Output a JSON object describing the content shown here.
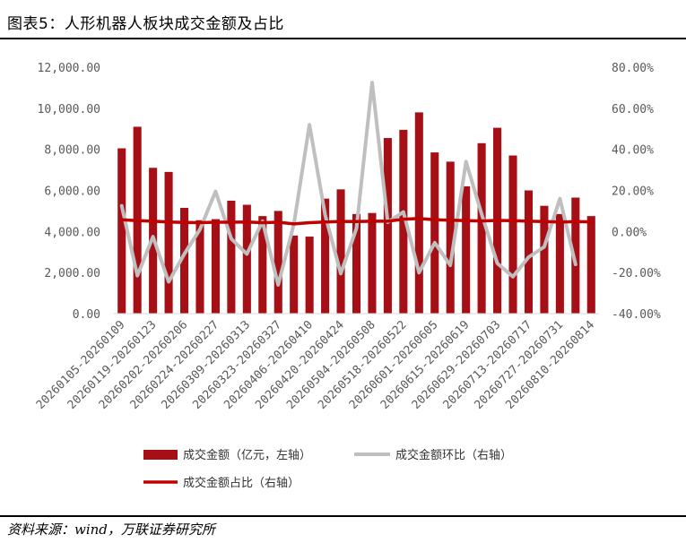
{
  "figure": {
    "title": "图表5：人形机器人板块成交金额及占比",
    "source": "资料来源：wind，万联证券研究所"
  },
  "colors": {
    "bar": "#A50F15",
    "ratio_line": "#C00000",
    "mom_line": "#BFBFBF"
  },
  "chart_data": {
    "type": "bar",
    "x_tick_labels": [
      "20260105-20260109",
      "20260119-20260123",
      "20260202-20260206",
      "20260224-20260227",
      "20260309-20260313",
      "20260323-20260327",
      "20260406-20260410",
      "20260420-20260424",
      "20260504-20260508",
      "20260518-20260522",
      "20260601-20260605",
      "20260615-20260619",
      "20260629-20260703",
      "20260713-20260717",
      "20260727-20260731",
      "20260810-20260814"
    ],
    "y_left": {
      "ticks": [
        "0.00",
        "2,000.00",
        "4,000.00",
        "6,000.00",
        "8,000.00",
        "10,000.00",
        "12,000.00"
      ],
      "ylim": [
        0,
        12000
      ]
    },
    "y_right": {
      "ticks": [
        "-40.00%",
        "-20.00%",
        "0.00%",
        "20.00%",
        "40.00%",
        "60.00%",
        "80.00%"
      ],
      "ylim": [
        -40,
        80
      ]
    },
    "grid": false,
    "legend_position": "bottom",
    "series": [
      {
        "name": "成交金额（亿元，左轴）",
        "type": "bar",
        "axis": "left",
        "values": [
          8050,
          9100,
          7100,
          6900,
          5150,
          4550,
          4600,
          5500,
          5300,
          4750,
          5000,
          3800,
          3750,
          5600,
          6050,
          4850,
          4900,
          8550,
          8950,
          9800,
          7850,
          7400,
          6200,
          8300,
          9050,
          7700,
          6000,
          5250,
          4850,
          5650,
          4750
        ]
      },
      {
        "name": "成交金额环比（右轴）",
        "type": "line",
        "axis": "right",
        "values": [
          12.5,
          -21.5,
          -2.5,
          -24.5,
          -11.0,
          1.0,
          19.5,
          -3.5,
          -11.0,
          5.0,
          -26.0,
          3.5,
          52.0,
          8.0,
          -20.5,
          1.5,
          72.5,
          4.5,
          9.5,
          -20.0,
          -5.5,
          -16.5,
          34.0,
          8.5,
          -15.5,
          -22.0,
          -12.5,
          -7.5,
          16.0,
          -16.0
        ]
      },
      {
        "name": "成交金额占比（右轴）",
        "type": "line",
        "axis": "right",
        "values": [
          5.7,
          5.3,
          5.0,
          4.6,
          4.4,
          4.3,
          4.5,
          4.5,
          4.6,
          4.3,
          4.5,
          3.7,
          4.3,
          4.6,
          4.9,
          4.8,
          5.0,
          5.0,
          6.0,
          6.3,
          5.7,
          5.5,
          5.3,
          5.1,
          5.4,
          5.3,
          5.0,
          4.8,
          4.6,
          4.8,
          4.7
        ]
      }
    ]
  }
}
